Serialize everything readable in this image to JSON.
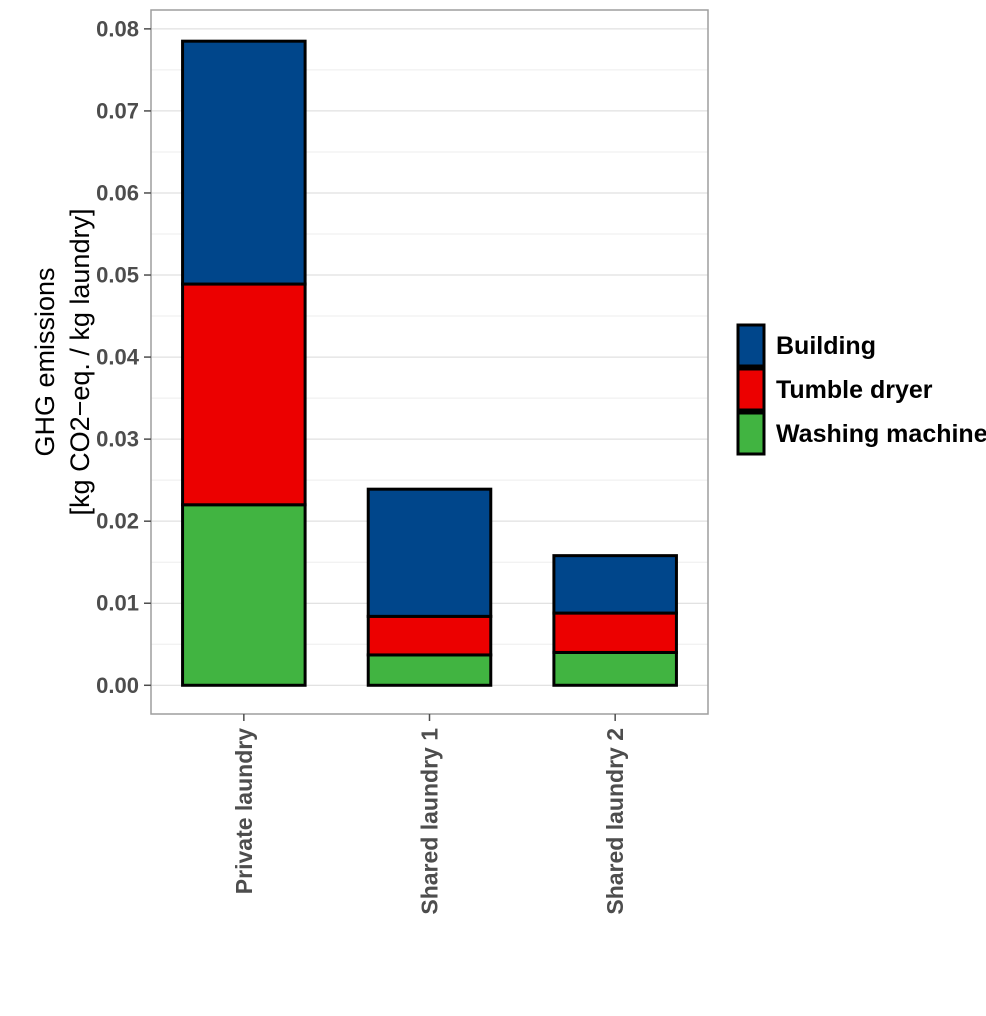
{
  "chart_data": {
    "type": "bar",
    "stacked": true,
    "categories": [
      "Private laundry",
      "Shared laundry 1",
      "Shared laundry 2"
    ],
    "series": [
      {
        "name": "Washing machine",
        "color": "#41b441",
        "values": [
          0.022,
          0.0037,
          0.004
        ]
      },
      {
        "name": "Tumble dryer",
        "color": "#ec0000",
        "values": [
          0.0269,
          0.0047,
          0.0048
        ]
      },
      {
        "name": "Building",
        "color": "#00468b",
        "values": [
          0.0296,
          0.0155,
          0.007
        ]
      }
    ],
    "legend_order": [
      "Building",
      "Tumble dryer",
      "Washing machine"
    ],
    "ylabel_lines": [
      "GHG emissions",
      "[kg CO2−eq. / kg laundry]"
    ],
    "yticks": [
      0,
      0.01,
      0.02,
      0.03,
      0.04,
      0.05,
      0.06,
      0.07,
      0.08
    ],
    "ytick_labels": [
      "0.00",
      "0.01",
      "0.02",
      "0.03",
      "0.04",
      "0.05",
      "0.06",
      "0.07",
      "0.08"
    ],
    "ylim": [
      -0.0035,
      0.0823
    ],
    "grid": true,
    "legend_position": "right"
  }
}
